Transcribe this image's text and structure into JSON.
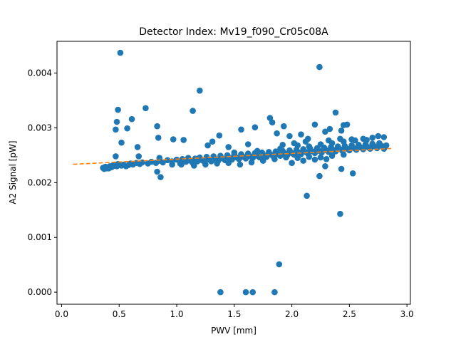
{
  "chart_data": {
    "type": "scatter",
    "title": "Detector Index: Mv19_f090_Cr05c08A",
    "xlabel": "PWV [mm]",
    "ylabel": "A2 Signal [pW]",
    "xlim": [
      -0.04,
      3.03
    ],
    "ylim": [
      -0.00022,
      0.00458
    ],
    "xticks": [
      0.0,
      0.5,
      1.0,
      1.5,
      2.0,
      2.5,
      3.0
    ],
    "xtick_labels": [
      "0.0",
      "0.5",
      "1.0",
      "1.5",
      "2.0",
      "2.5",
      "3.0"
    ],
    "yticks": [
      0.0,
      0.001,
      0.002,
      0.003,
      0.004
    ],
    "ytick_labels": [
      "0.000",
      "0.001",
      "0.002",
      "0.003",
      "0.004"
    ],
    "colors": {
      "scatter": "#1f77b4",
      "fit": "#ff7f0e",
      "axes": "#000000"
    },
    "series": [
      {
        "name": "A2 signal",
        "kind": "scatter",
        "points": [
          [
            0.36,
            0.00227
          ],
          [
            0.37,
            0.00225
          ],
          [
            0.38,
            0.00229
          ],
          [
            0.39,
            0.00226
          ],
          [
            0.4,
            0.00228
          ],
          [
            0.41,
            0.00226
          ],
          [
            0.42,
            0.0023
          ],
          [
            0.43,
            0.00228
          ],
          [
            0.44,
            0.00229
          ],
          [
            0.45,
            0.00232
          ],
          [
            0.46,
            0.00231
          ],
          [
            0.47,
            0.00233
          ],
          [
            0.48,
            0.0023
          ],
          [
            0.49,
            0.00234
          ],
          [
            0.5,
            0.00232
          ],
          [
            0.52,
            0.00231
          ],
          [
            0.54,
            0.00233
          ],
          [
            0.56,
            0.0023
          ],
          [
            0.58,
            0.00232
          ],
          [
            0.6,
            0.00235
          ],
          [
            0.62,
            0.00233
          ],
          [
            0.65,
            0.00236
          ],
          [
            0.68,
            0.00234
          ],
          [
            0.7,
            0.00237
          ],
          [
            0.75,
            0.00235
          ],
          [
            0.78,
            0.00238
          ],
          [
            0.82,
            0.00236
          ],
          [
            0.85,
            0.0024
          ],
          [
            0.88,
            0.00237
          ],
          [
            0.92,
            0.00241
          ],
          [
            0.96,
            0.00239
          ],
          [
            1.0,
            0.00242
          ],
          [
            1.03,
            0.00235
          ],
          [
            1.05,
            0.00243
          ],
          [
            1.08,
            0.00238
          ],
          [
            1.1,
            0.00245
          ],
          [
            1.12,
            0.0024
          ],
          [
            1.14,
            0.00236
          ],
          [
            1.16,
            0.00244
          ],
          [
            1.18,
            0.00239
          ],
          [
            1.2,
            0.00246
          ],
          [
            1.22,
            0.00241
          ],
          [
            1.24,
            0.00238
          ],
          [
            1.26,
            0.00247
          ],
          [
            1.28,
            0.00242
          ],
          [
            1.3,
            0.00239
          ],
          [
            1.32,
            0.00248
          ],
          [
            1.34,
            0.00243
          ],
          [
            1.36,
            0.0024
          ],
          [
            1.38,
            0.00249
          ],
          [
            1.4,
            0.00244
          ],
          [
            1.42,
            0.00241
          ],
          [
            1.44,
            0.0025
          ],
          [
            1.46,
            0.00245
          ],
          [
            1.48,
            0.00242
          ],
          [
            1.5,
            0.00251
          ],
          [
            1.52,
            0.00246
          ],
          [
            1.54,
            0.00243
          ],
          [
            1.56,
            0.00252
          ],
          [
            1.58,
            0.00247
          ],
          [
            1.6,
            0.00244
          ],
          [
            1.62,
            0.00253
          ],
          [
            1.64,
            0.00248
          ],
          [
            1.66,
            0.00245
          ],
          [
            1.68,
            0.00254
          ],
          [
            1.7,
            0.00249
          ],
          [
            1.72,
            0.00246
          ],
          [
            1.74,
            0.00255
          ],
          [
            1.76,
            0.0025
          ],
          [
            1.78,
            0.00247
          ],
          [
            1.8,
            0.00256
          ],
          [
            1.82,
            0.00251
          ],
          [
            1.84,
            0.00248
          ],
          [
            1.86,
            0.00257
          ],
          [
            1.88,
            0.00252
          ],
          [
            1.9,
            0.00249
          ],
          [
            1.92,
            0.00258
          ],
          [
            1.94,
            0.00253
          ],
          [
            1.96,
            0.0025
          ],
          [
            1.98,
            0.00259
          ],
          [
            2.0,
            0.00254
          ],
          [
            2.02,
            0.00251
          ],
          [
            2.04,
            0.0026
          ],
          [
            2.06,
            0.00255
          ],
          [
            2.08,
            0.00252
          ],
          [
            2.1,
            0.00261
          ],
          [
            2.12,
            0.00256
          ],
          [
            2.14,
            0.00253
          ],
          [
            2.16,
            0.00262
          ],
          [
            2.18,
            0.00257
          ],
          [
            2.2,
            0.00254
          ],
          [
            2.22,
            0.00263
          ],
          [
            2.24,
            0.00258
          ],
          [
            2.26,
            0.00255
          ],
          [
            2.28,
            0.00264
          ],
          [
            2.3,
            0.00259
          ],
          [
            2.32,
            0.00256
          ],
          [
            2.34,
            0.00265
          ],
          [
            2.36,
            0.0026
          ],
          [
            2.38,
            0.00257
          ],
          [
            2.4,
            0.00266
          ],
          [
            2.42,
            0.00261
          ],
          [
            2.44,
            0.00258
          ],
          [
            2.46,
            0.00267
          ],
          [
            2.48,
            0.00262
          ],
          [
            2.5,
            0.00259
          ],
          [
            2.52,
            0.00268
          ],
          [
            2.54,
            0.00263
          ],
          [
            2.56,
            0.0026
          ],
          [
            2.58,
            0.00269
          ],
          [
            2.6,
            0.00264
          ],
          [
            2.62,
            0.00261
          ],
          [
            2.64,
            0.0027
          ],
          [
            2.66,
            0.00265
          ],
          [
            2.68,
            0.00262
          ],
          [
            2.7,
            0.00271
          ],
          [
            2.72,
            0.00266
          ],
          [
            2.74,
            0.00263
          ],
          [
            2.76,
            0.00272
          ],
          [
            2.78,
            0.00267
          ],
          [
            2.8,
            0.00262
          ],
          [
            2.82,
            0.00268
          ],
          [
            1.55,
            0.00233
          ],
          [
            1.65,
            0.00237
          ],
          [
            1.75,
            0.0024
          ],
          [
            1.85,
            0.00243
          ],
          [
            1.95,
            0.00246
          ],
          [
            2.05,
            0.00245
          ],
          [
            2.15,
            0.00247
          ],
          [
            2.25,
            0.00246
          ],
          [
            2.35,
            0.00249
          ],
          [
            2.45,
            0.00251
          ],
          [
            1.35,
            0.00235
          ],
          [
            1.25,
            0.00233
          ],
          [
            1.15,
            0.00231
          ],
          [
            1.45,
            0.00236
          ],
          [
            2.0,
            0.00236
          ],
          [
            2.1,
            0.0024
          ],
          [
            2.2,
            0.00242
          ],
          [
            2.3,
            0.00243
          ],
          [
            1.5,
            0.00255
          ],
          [
            1.7,
            0.00258
          ],
          [
            1.9,
            0.00262
          ],
          [
            2.05,
            0.00268
          ],
          [
            2.15,
            0.00266
          ],
          [
            2.25,
            0.0027
          ],
          [
            2.35,
            0.00272
          ],
          [
            2.45,
            0.00275
          ],
          [
            2.55,
            0.00277
          ],
          [
            2.65,
            0.00278
          ],
          [
            2.7,
            0.00282
          ],
          [
            2.75,
            0.00285
          ],
          [
            2.8,
            0.00283
          ],
          [
            2.62,
            0.0028
          ],
          [
            2.52,
            0.00279
          ],
          [
            2.32,
            0.00277
          ],
          [
            2.42,
            0.0028
          ],
          [
            2.12,
            0.00275
          ],
          [
            2.02,
            0.00272
          ],
          [
            1.92,
            0.00269
          ],
          [
            0.51,
            0.00437
          ],
          [
            2.24,
            0.00411
          ],
          [
            1.2,
            0.00368
          ],
          [
            0.49,
            0.00333
          ],
          [
            0.73,
            0.00336
          ],
          [
            1.14,
            0.00331
          ],
          [
            2.38,
            0.00328
          ],
          [
            0.61,
            0.00316
          ],
          [
            0.48,
            0.00311
          ],
          [
            0.57,
            0.00299
          ],
          [
            0.47,
            0.00297
          ],
          [
            0.52,
            0.00273
          ],
          [
            0.66,
            0.00265
          ],
          [
            0.84,
            0.00282
          ],
          [
            0.83,
            0.00303
          ],
          [
            1.37,
            0.00286
          ],
          [
            1.56,
            0.00297
          ],
          [
            1.68,
            0.00301
          ],
          [
            1.81,
            0.00318
          ],
          [
            1.83,
            0.0031
          ],
          [
            1.93,
            0.00303
          ],
          [
            2.08,
            0.00288
          ],
          [
            2.2,
            0.00306
          ],
          [
            2.33,
            0.00298
          ],
          [
            2.45,
            0.00305
          ],
          [
            2.48,
            0.00306
          ],
          [
            2.43,
            0.00295
          ],
          [
            2.29,
            0.00293
          ],
          [
            2.14,
            0.0028
          ],
          [
            1.87,
            0.0029
          ],
          [
            1.98,
            0.00285
          ],
          [
            1.62,
            0.0027
          ],
          [
            1.45,
            0.00265
          ],
          [
            1.27,
            0.00268
          ],
          [
            1.06,
            0.00278
          ],
          [
            0.97,
            0.00279
          ],
          [
            1.31,
            0.00275
          ],
          [
            0.47,
            0.00248
          ],
          [
            0.67,
            0.00248
          ],
          [
            0.85,
            0.00245
          ],
          [
            0.83,
            0.0022
          ],
          [
            0.86,
            0.0021
          ],
          [
            1.04,
            0.00233
          ],
          [
            0.96,
            0.00233
          ],
          [
            2.29,
            0.0023
          ],
          [
            2.24,
            0.00212
          ],
          [
            2.53,
            0.00217
          ],
          [
            2.43,
            0.00225
          ],
          [
            2.13,
            0.00176
          ],
          [
            2.42,
            0.00143
          ],
          [
            1.89,
            0.00051
          ],
          [
            1.38,
            0.0
          ],
          [
            1.6,
            0.0
          ],
          [
            1.66,
            0.0
          ],
          [
            1.85,
            0.0
          ]
        ]
      },
      {
        "name": "linear fit",
        "kind": "dashed-line",
        "points": [
          [
            0.1,
            0.002335
          ],
          [
            2.88,
            0.002625
          ]
        ]
      }
    ]
  }
}
